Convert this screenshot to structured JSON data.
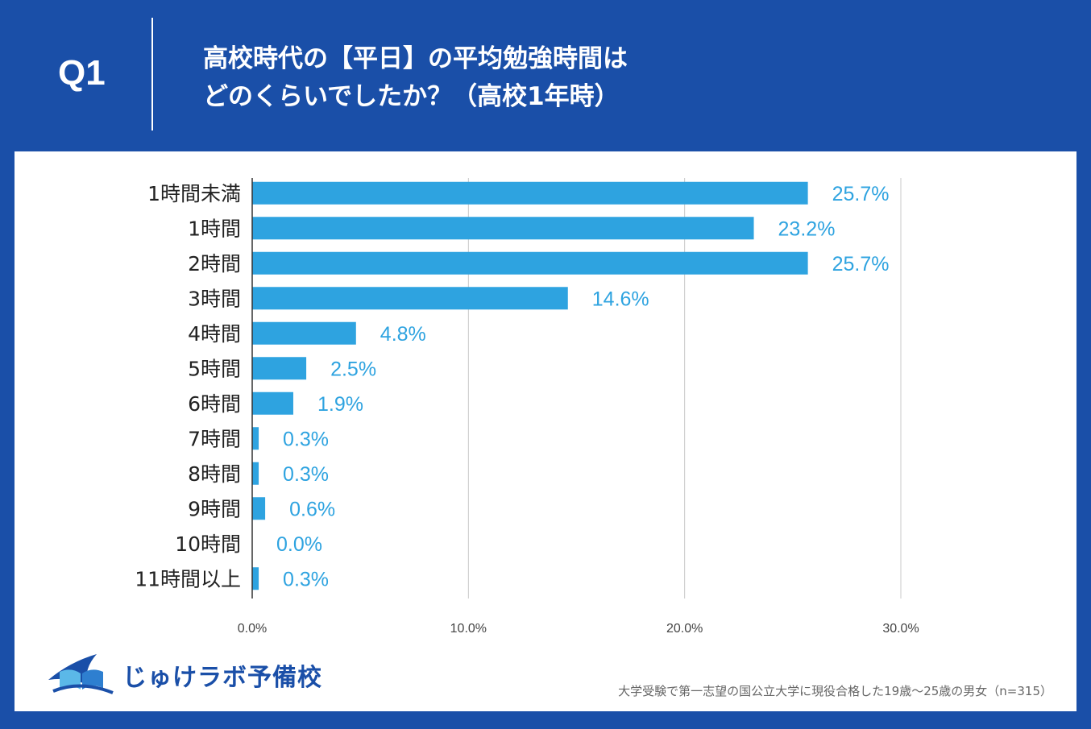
{
  "header": {
    "question": "Q1",
    "title_line1": "高校時代の【平日】の平均勉強時間は",
    "title_line2": "どのくらいでしたか？（高校1年時）"
  },
  "colors": {
    "background": "#1a4fa8",
    "bar": "#2ea3e0",
    "value_label": "#2ea3e0",
    "grid": "#c8c8c8"
  },
  "chart_data": {
    "type": "bar",
    "orientation": "horizontal",
    "categories": [
      "1時間未満",
      "1時間",
      "2時間",
      "3時間",
      "4時間",
      "5時間",
      "6時間",
      "7時間",
      "8時間",
      "9時間",
      "10時間",
      "11時間以上"
    ],
    "values": [
      25.7,
      23.2,
      25.7,
      14.6,
      4.8,
      2.5,
      1.9,
      0.3,
      0.3,
      0.6,
      0.0,
      0.3
    ],
    "value_labels": [
      "25.7%",
      "23.2%",
      "25.7%",
      "14.6%",
      "4.8%",
      "2.5%",
      "1.9%",
      "0.3%",
      "0.3%",
      "0.6%",
      "0.0%",
      "0.3%"
    ],
    "xlim": [
      0,
      30
    ],
    "xticks": [
      0,
      10,
      20,
      30
    ],
    "xtick_labels": [
      "0.0%",
      "10.0%",
      "20.0%",
      "30.0%"
    ],
    "grid": true,
    "legend": "none"
  },
  "logo": {
    "text": "じゅけラボ予備校",
    "icon": "open-book-icon"
  },
  "footnote": "大学受験で第一志望の国公立大学に現役合格した19歳〜25歳の男女（n=315）"
}
